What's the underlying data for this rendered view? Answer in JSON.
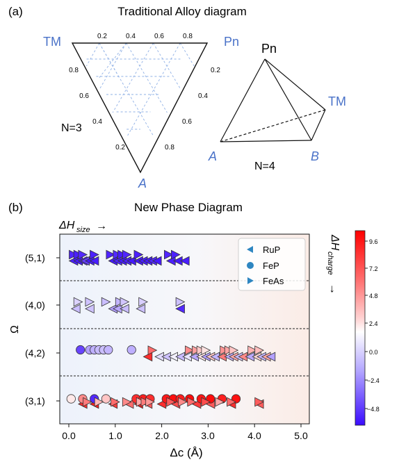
{
  "panel_a": {
    "panel_label": "(a)",
    "title": "Traditional Alloy diagram",
    "ternary": {
      "vertex_top_left": "TM",
      "vertex_top_right": "Pn",
      "vertex_bottom": "A",
      "ticks_top": [
        "0.2",
        "0.4",
        "0.6",
        "0.8"
      ],
      "ticks_left": [
        "0.8",
        "0.6",
        "0.4",
        "0.2"
      ],
      "ticks_right": [
        "0.2",
        "0.4",
        "0.6",
        "0.8"
      ],
      "n_label": "N=3"
    },
    "tetrahedron": {
      "vertex_top": "Pn",
      "vertex_right": "TM",
      "vertex_left": "A",
      "vertex_bottom": "B",
      "n_label": "N=4"
    }
  },
  "panel_b": {
    "panel_label": "(b)",
    "title": "New Phase Diagram",
    "arrow_label_top": "ΔH",
    "arrow_label_top_sub": "size",
    "arrow_label_right": "ΔH",
    "arrow_label_right_sub": "charge",
    "arrow_glyph": "→"
  },
  "chart_data": {
    "type": "scatter",
    "title": "New Phase Diagram",
    "xlabel": "Δc (Å)",
    "ylabel": "Ω",
    "xlim": [
      -0.2,
      5.2
    ],
    "x_ticks": [
      "0.0",
      "1.0",
      "2.0",
      "3.0",
      "4.0",
      "5.0"
    ],
    "categories": [
      "(5,1)",
      "(4,0)",
      "(4,2)",
      "(3,1)"
    ],
    "grid": false,
    "legend_position": "top-right",
    "colorbar": {
      "cmap": "bwr",
      "range": [
        -6.5,
        10
      ],
      "ticks": [
        "9.6",
        "7.2",
        "4.8",
        "2.4",
        "0.0",
        "−2.4",
        "−4.8"
      ],
      "low_color": "#3b0bff",
      "mid_color": "#ffffff",
      "high_color": "#ff0000"
    },
    "series": [
      {
        "name": "RuP",
        "marker": "triangle-left",
        "points": [
          {
            "c": "(5,1)",
            "x": 0.1,
            "y": -0.15,
            "v": -5.8
          },
          {
            "c": "(5,1)",
            "x": 0.2,
            "y": -0.15,
            "v": -6
          },
          {
            "c": "(5,1)",
            "x": 0.3,
            "y": -0.15,
            "v": -5.5
          },
          {
            "c": "(5,1)",
            "x": 0.35,
            "y": -0.15,
            "v": -4.8
          },
          {
            "c": "(5,1)",
            "x": 0.45,
            "y": -0.15,
            "v": -6
          },
          {
            "c": "(5,1)",
            "x": 0.55,
            "y": -0.15,
            "v": -5.9
          },
          {
            "c": "(5,1)",
            "x": 0.95,
            "y": -0.15,
            "v": -6
          },
          {
            "c": "(5,1)",
            "x": 1.05,
            "y": -0.15,
            "v": -5.7
          },
          {
            "c": "(5,1)",
            "x": 1.15,
            "y": -0.15,
            "v": -6
          },
          {
            "c": "(5,1)",
            "x": 1.25,
            "y": -0.15,
            "v": -5.8
          },
          {
            "c": "(5,1)",
            "x": 1.35,
            "y": -0.15,
            "v": -6
          },
          {
            "c": "(5,1)",
            "x": 1.5,
            "y": -0.15,
            "v": -6
          },
          {
            "c": "(5,1)",
            "x": 1.6,
            "y": -0.15,
            "v": -5.9
          },
          {
            "c": "(5,1)",
            "x": 1.7,
            "y": -0.15,
            "v": -6
          },
          {
            "c": "(5,1)",
            "x": 1.8,
            "y": -0.15,
            "v": -5.6
          },
          {
            "c": "(5,1)",
            "x": 1.9,
            "y": -0.15,
            "v": -6
          },
          {
            "c": "(5,1)",
            "x": 2.2,
            "y": -0.15,
            "v": -5.8
          },
          {
            "c": "(5,1)",
            "x": 2.35,
            "y": -0.15,
            "v": -6
          },
          {
            "c": "(5,1)",
            "x": 2.5,
            "y": -0.15,
            "v": -5.9
          },
          {
            "c": "(4,0)",
            "x": 0.15,
            "y": -0.18,
            "v": -0.5
          },
          {
            "c": "(4,0)",
            "x": 0.45,
            "y": -0.18,
            "v": -0.3
          },
          {
            "c": "(4,0)",
            "x": 0.95,
            "y": -0.18,
            "v": -1.5
          },
          {
            "c": "(4,0)",
            "x": 1.05,
            "y": -0.18,
            "v": -1.2
          },
          {
            "c": "(4,0)",
            "x": 1.2,
            "y": -0.18,
            "v": -0.6
          },
          {
            "c": "(4,0)",
            "x": 1.55,
            "y": -0.18,
            "v": -0.4
          },
          {
            "c": "(4,0)",
            "x": 2.4,
            "y": -0.18,
            "v": -5.5
          },
          {
            "c": "(4,2)",
            "x": 1.7,
            "y": -0.18,
            "v": 8.5
          },
          {
            "c": "(4,2)",
            "x": 1.95,
            "y": -0.18,
            "v": 0.5
          },
          {
            "c": "(4,2)",
            "x": 2.1,
            "y": -0.18,
            "v": -0.4
          },
          {
            "c": "(4,2)",
            "x": 2.25,
            "y": -0.18,
            "v": 1.2
          },
          {
            "c": "(4,2)",
            "x": 2.4,
            "y": -0.18,
            "v": -0.6
          },
          {
            "c": "(4,2)",
            "x": 2.55,
            "y": -0.18,
            "v": 0.8
          },
          {
            "c": "(4,2)",
            "x": 2.7,
            "y": -0.18,
            "v": -1.2
          },
          {
            "c": "(4,2)",
            "x": 2.85,
            "y": -0.18,
            "v": 2.5
          },
          {
            "c": "(4,2)",
            "x": 2.95,
            "y": -0.18,
            "v": -1.5
          },
          {
            "c": "(4,2)",
            "x": 3.05,
            "y": -0.18,
            "v": 3.5
          },
          {
            "c": "(4,2)",
            "x": 3.15,
            "y": -0.18,
            "v": -0.8
          },
          {
            "c": "(4,2)",
            "x": 3.3,
            "y": -0.18,
            "v": 6
          },
          {
            "c": "(4,2)",
            "x": 3.45,
            "y": -0.18,
            "v": -1
          },
          {
            "c": "(4,2)",
            "x": 3.55,
            "y": -0.18,
            "v": 4.5
          },
          {
            "c": "(4,2)",
            "x": 3.65,
            "y": -0.18,
            "v": -0.5
          },
          {
            "c": "(4,2)",
            "x": 3.75,
            "y": -0.18,
            "v": 5.5
          },
          {
            "c": "(4,2)",
            "x": 3.9,
            "y": -0.18,
            "v": -1.2
          },
          {
            "c": "(4,2)",
            "x": 4.05,
            "y": -0.18,
            "v": 3
          },
          {
            "c": "(4,2)",
            "x": 4.15,
            "y": -0.18,
            "v": -0.8
          },
          {
            "c": "(4,2)",
            "x": 4.25,
            "y": -0.18,
            "v": 4.5
          },
          {
            "c": "(4,2)",
            "x": 4.35,
            "y": -0.18,
            "v": -1.5
          },
          {
            "c": "(3,1)",
            "x": 0.3,
            "y": -0.15,
            "v": 8.5
          },
          {
            "c": "(3,1)",
            "x": 0.55,
            "y": -0.15,
            "v": 9
          },
          {
            "c": "(3,1)",
            "x": 0.95,
            "y": -0.15,
            "v": 8
          },
          {
            "c": "(3,1)",
            "x": 1.3,
            "y": -0.15,
            "v": 6.5
          },
          {
            "c": "(3,1)",
            "x": 1.5,
            "y": -0.15,
            "v": 9
          },
          {
            "c": "(3,1)",
            "x": 1.7,
            "y": -0.15,
            "v": 7
          },
          {
            "c": "(3,1)",
            "x": 2.0,
            "y": -0.15,
            "v": 8.5
          },
          {
            "c": "(3,1)",
            "x": 2.3,
            "y": -0.15,
            "v": 7.5
          },
          {
            "c": "(3,1)",
            "x": 2.75,
            "y": -0.15,
            "v": 8
          },
          {
            "c": "(3,1)",
            "x": 3.05,
            "y": -0.15,
            "v": 7
          },
          {
            "c": "(3,1)",
            "x": 3.5,
            "y": -0.15,
            "v": 8.5
          },
          {
            "c": "(3,1)",
            "x": 4.1,
            "y": -0.15,
            "v": 7
          }
        ]
      },
      {
        "name": "FeP",
        "marker": "circle",
        "points": [
          {
            "c": "(4,2)",
            "x": 0.25,
            "y": 0.15,
            "v": -4.6
          },
          {
            "c": "(4,2)",
            "x": 0.45,
            "y": 0.15,
            "v": -1.5
          },
          {
            "c": "(4,2)",
            "x": 0.55,
            "y": 0.15,
            "v": -1
          },
          {
            "c": "(4,2)",
            "x": 0.65,
            "y": 0.15,
            "v": -0.6
          },
          {
            "c": "(4,2)",
            "x": 0.75,
            "y": 0.15,
            "v": -0.5
          },
          {
            "c": "(4,2)",
            "x": 0.85,
            "y": 0.15,
            "v": -0.8
          },
          {
            "c": "(4,2)",
            "x": 1.35,
            "y": 0.15,
            "v": -1
          },
          {
            "c": "(3,1)",
            "x": 0.05,
            "y": 0.1,
            "v": 2.4
          },
          {
            "c": "(3,1)",
            "x": 0.3,
            "y": 0.1,
            "v": 5.5
          },
          {
            "c": "(3,1)",
            "x": 0.55,
            "y": 0.1,
            "v": -5.5
          },
          {
            "c": "(3,1)",
            "x": 0.8,
            "y": 0.1,
            "v": 3.6
          },
          {
            "c": "(3,1)",
            "x": 1.45,
            "y": 0.1,
            "v": 8.5
          },
          {
            "c": "(3,1)",
            "x": 1.6,
            "y": 0.1,
            "v": 9
          },
          {
            "c": "(3,1)",
            "x": 1.75,
            "y": 0.1,
            "v": 8.5
          },
          {
            "c": "(3,1)",
            "x": 2.1,
            "y": 0.1,
            "v": 9.2
          },
          {
            "c": "(3,1)",
            "x": 2.25,
            "y": 0.1,
            "v": 9.5
          },
          {
            "c": "(3,1)",
            "x": 2.4,
            "y": 0.1,
            "v": 9
          },
          {
            "c": "(3,1)",
            "x": 2.6,
            "y": 0.1,
            "v": 9.6
          },
          {
            "c": "(3,1)",
            "x": 2.85,
            "y": 0.1,
            "v": 9.3
          },
          {
            "c": "(3,1)",
            "x": 3.05,
            "y": 0.1,
            "v": 9.6
          },
          {
            "c": "(3,1)",
            "x": 3.3,
            "y": 0.1,
            "v": 9
          },
          {
            "c": "(3,1)",
            "x": 3.6,
            "y": 0.1,
            "v": 9.4
          }
        ]
      },
      {
        "name": "FeAs",
        "marker": "triangle-right",
        "points": [
          {
            "c": "(5,1)",
            "x": 0.1,
            "y": 0.15,
            "v": -5.6
          },
          {
            "c": "(5,1)",
            "x": 0.2,
            "y": 0.15,
            "v": -5.8
          },
          {
            "c": "(5,1)",
            "x": 0.3,
            "y": 0.15,
            "v": -5.5
          },
          {
            "c": "(5,1)",
            "x": 0.55,
            "y": 0.15,
            "v": -5.8
          },
          {
            "c": "(5,1)",
            "x": 0.9,
            "y": 0.15,
            "v": -5.7
          },
          {
            "c": "(5,1)",
            "x": 1.05,
            "y": 0.15,
            "v": -5.5
          },
          {
            "c": "(5,1)",
            "x": 1.15,
            "y": 0.15,
            "v": -5.9
          },
          {
            "c": "(5,1)",
            "x": 1.25,
            "y": 0.15,
            "v": -5.6
          },
          {
            "c": "(5,1)",
            "x": 1.5,
            "y": 0.15,
            "v": -5.8
          },
          {
            "c": "(5,1)",
            "x": 2.15,
            "y": 0.15,
            "v": -5.6
          },
          {
            "c": "(5,1)",
            "x": 2.3,
            "y": 0.15,
            "v": -5.8
          },
          {
            "c": "(4,0)",
            "x": 0.2,
            "y": 0.15,
            "v": 0.2
          },
          {
            "c": "(4,0)",
            "x": 0.45,
            "y": 0.15,
            "v": -0.3
          },
          {
            "c": "(4,0)",
            "x": 0.8,
            "y": 0.15,
            "v": -0.5
          },
          {
            "c": "(4,0)",
            "x": 1.1,
            "y": 0.15,
            "v": -0.8
          },
          {
            "c": "(4,0)",
            "x": 1.2,
            "y": 0.15,
            "v": -0.2
          },
          {
            "c": "(4,0)",
            "x": 1.6,
            "y": 0.15,
            "v": 0.1
          },
          {
            "c": "(4,0)",
            "x": 2.4,
            "y": 0.15,
            "v": -0.4
          },
          {
            "c": "(4,2)",
            "x": 1.8,
            "y": 0.13,
            "v": 6.5
          },
          {
            "c": "(4,2)",
            "x": 2.6,
            "y": 0.13,
            "v": 5.5
          },
          {
            "c": "(4,2)",
            "x": 2.75,
            "y": 0.13,
            "v": 4.8
          },
          {
            "c": "(4,2)",
            "x": 2.85,
            "y": 0.13,
            "v": 3.5
          },
          {
            "c": "(4,2)",
            "x": 2.95,
            "y": 0.13,
            "v": 2.6
          },
          {
            "c": "(4,2)",
            "x": 3.35,
            "y": 0.13,
            "v": 5.2
          },
          {
            "c": "(4,2)",
            "x": 3.45,
            "y": 0.13,
            "v": 4.6
          },
          {
            "c": "(4,2)",
            "x": 3.55,
            "y": 0.13,
            "v": 3.6
          },
          {
            "c": "(4,2)",
            "x": 3.95,
            "y": 0.13,
            "v": 4.2
          },
          {
            "c": "(4,2)",
            "x": 4.1,
            "y": 0.13,
            "v": 3.8
          },
          {
            "c": "(3,1)",
            "x": 0.4,
            "y": -0.05,
            "v": 6
          },
          {
            "c": "(3,1)",
            "x": 0.65,
            "y": -0.05,
            "v": 4
          },
          {
            "c": "(3,1)",
            "x": 1.0,
            "y": -0.05,
            "v": 6.5
          },
          {
            "c": "(3,1)",
            "x": 1.25,
            "y": -0.05,
            "v": 5.5
          },
          {
            "c": "(3,1)",
            "x": 1.55,
            "y": -0.05,
            "v": 4.5
          },
          {
            "c": "(3,1)",
            "x": 1.65,
            "y": -0.05,
            "v": 6
          },
          {
            "c": "(3,1)",
            "x": 1.75,
            "y": -0.05,
            "v": 5
          },
          {
            "c": "(3,1)",
            "x": 2.2,
            "y": -0.05,
            "v": 7
          },
          {
            "c": "(3,1)",
            "x": 2.45,
            "y": -0.05,
            "v": 5.5
          },
          {
            "c": "(3,1)",
            "x": 2.65,
            "y": -0.05,
            "v": 6.5
          },
          {
            "c": "(3,1)",
            "x": 2.95,
            "y": -0.05,
            "v": 7.5
          },
          {
            "c": "(3,1)",
            "x": 3.25,
            "y": -0.05,
            "v": 4.5
          },
          {
            "c": "(3,1)",
            "x": 3.5,
            "y": -0.05,
            "v": 6.5
          },
          {
            "c": "(3,1)",
            "x": 4.1,
            "y": -0.05,
            "v": 7
          }
        ]
      }
    ]
  }
}
